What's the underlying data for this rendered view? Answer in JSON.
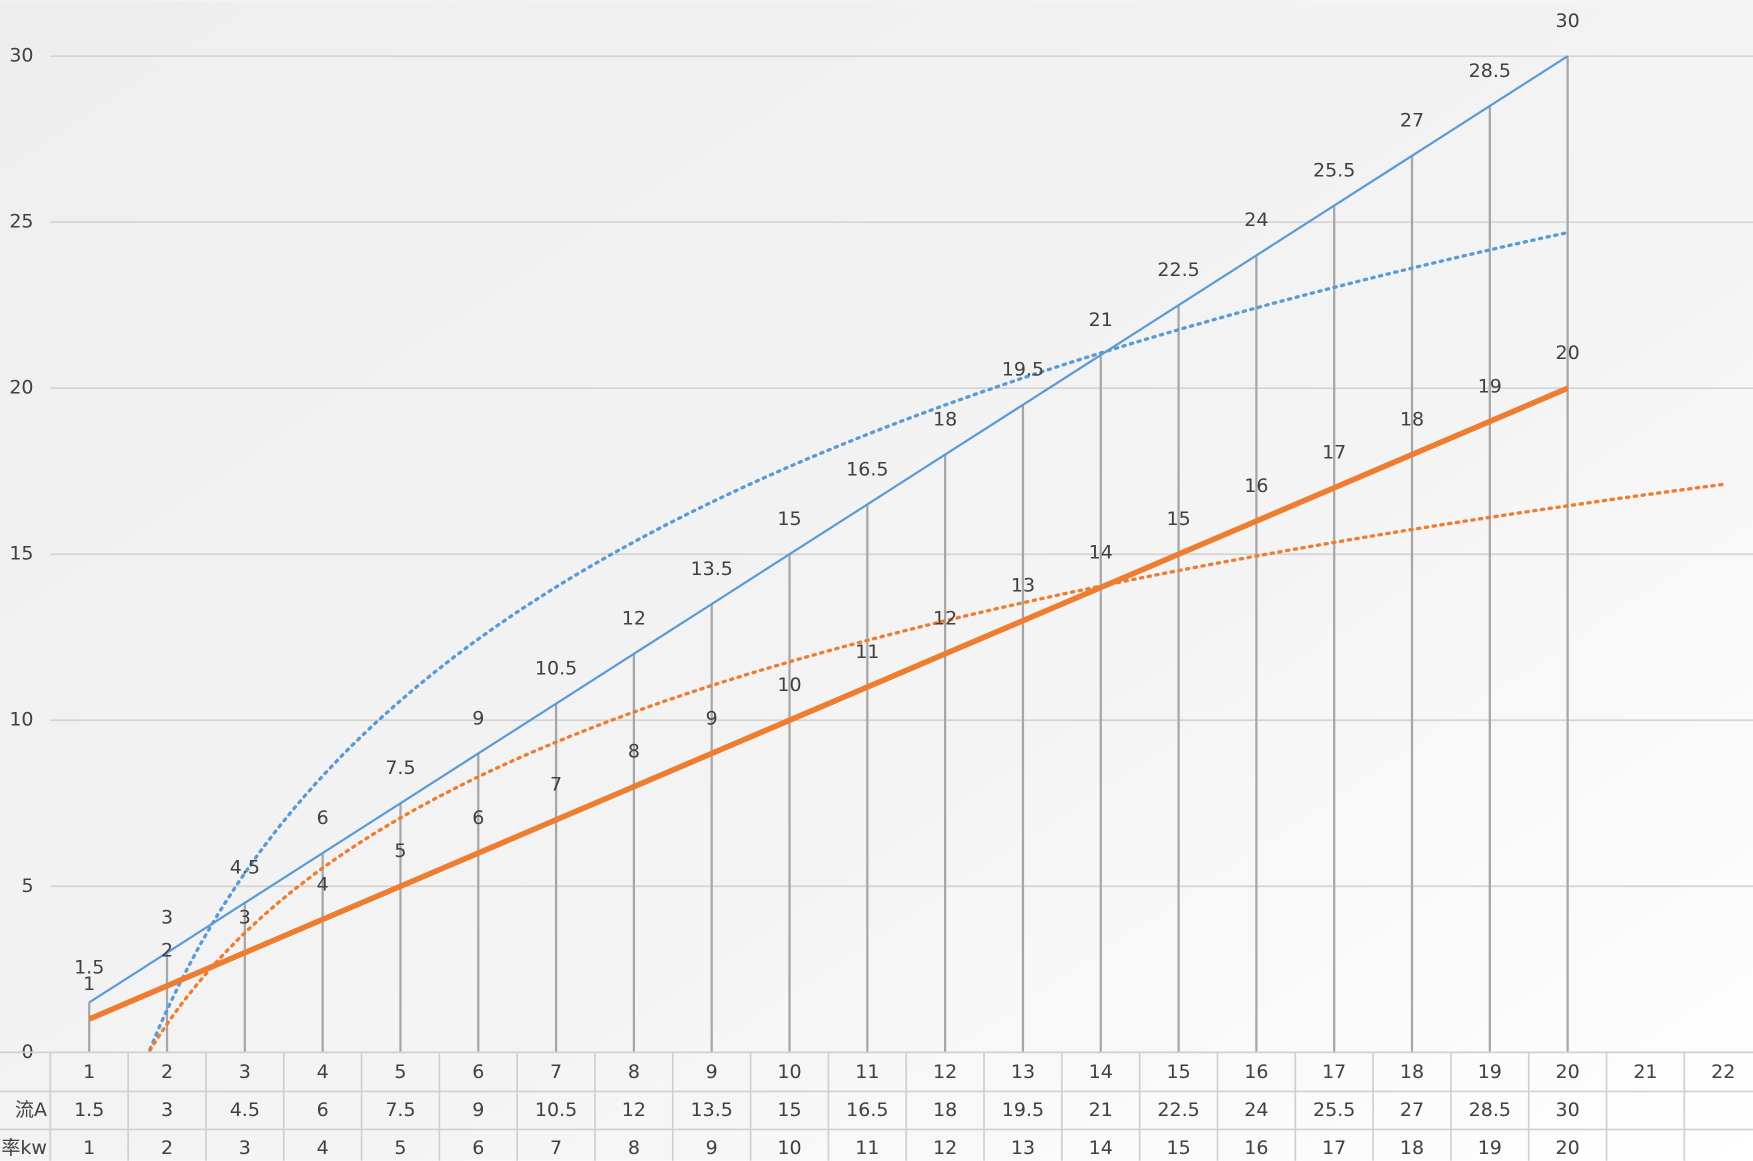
{
  "chart_data": {
    "type": "line",
    "categories": [
      1,
      2,
      3,
      4,
      5,
      6,
      7,
      8,
      9,
      10,
      11,
      12,
      13,
      14,
      15,
      16,
      17,
      18,
      19,
      20,
      21,
      22
    ],
    "series": [
      {
        "name": "流A",
        "color": "#5b9bd5",
        "width": 2,
        "values": [
          1.5,
          3,
          4.5,
          6,
          7.5,
          9,
          10.5,
          12,
          13.5,
          15,
          16.5,
          18,
          19.5,
          21,
          22.5,
          24,
          25.5,
          27,
          28.5,
          30,
          null,
          null
        ],
        "trendline": {
          "type": "log",
          "forward": 0
        }
      },
      {
        "name": "率kw",
        "color": "#ed7d31",
        "width": 5,
        "values": [
          1,
          2,
          3,
          4,
          5,
          6,
          7,
          8,
          9,
          10,
          11,
          12,
          13,
          14,
          15,
          16,
          17,
          18,
          19,
          20,
          null,
          null
        ],
        "trendline": {
          "type": "log",
          "forward": 2
        }
      }
    ],
    "ylim": [
      0,
      30
    ],
    "yticks": [
      0,
      5,
      10,
      15,
      20,
      25,
      30
    ],
    "grid": true,
    "drop_lines": true,
    "data_table": true
  }
}
